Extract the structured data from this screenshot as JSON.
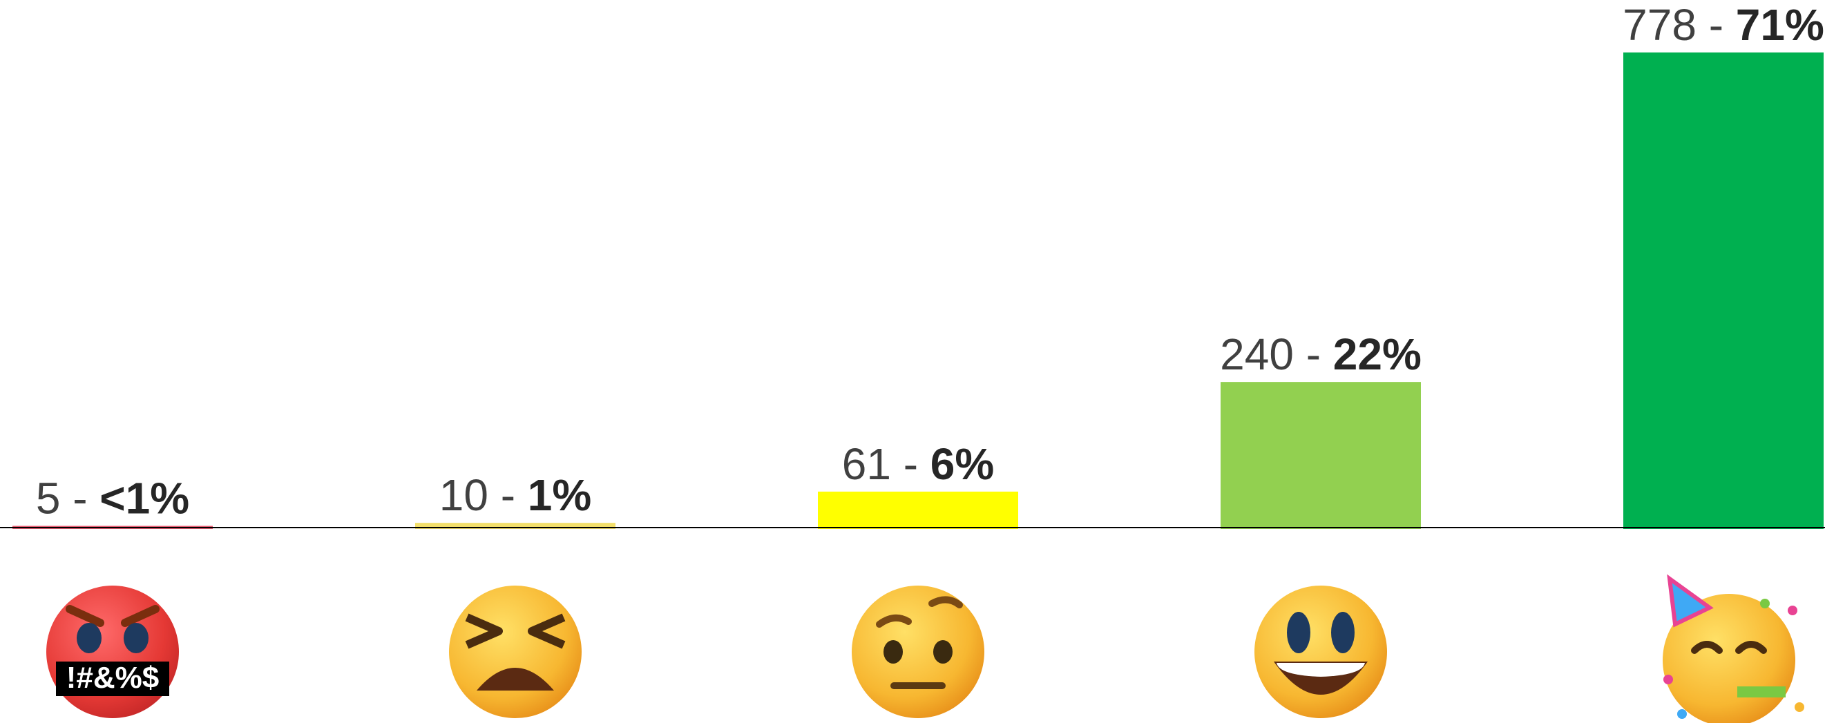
{
  "chart_data": {
    "type": "bar",
    "categories": [
      null,
      null,
      null,
      null,
      null
    ],
    "values": [
      5,
      10,
      61,
      240,
      778
    ],
    "label_separator": " - ",
    "percent_labels": [
      "<1%",
      "1%",
      "6%",
      "22%",
      "71%"
    ],
    "colors": [
      "#e35a6e",
      "#f3df6a",
      "#ffff00",
      "#92d050",
      "#00b050"
    ],
    "ylim": [
      0,
      778
    ],
    "emoji_symbols": "!#&%$"
  }
}
